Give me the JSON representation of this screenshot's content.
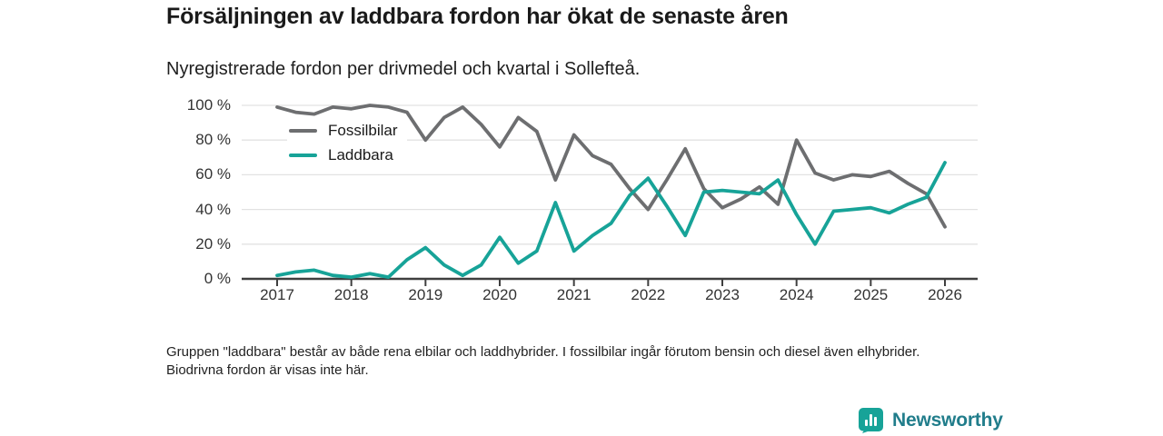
{
  "header": {
    "title": "Försäljningen av laddbara fordon har ökat de senaste åren",
    "subtitle": "Nyregistrerade fordon per drivmedel och kvartal i Sollefteå."
  },
  "chart_data": {
    "type": "line",
    "x_unit": "quarter",
    "x": [
      "2017 Q1",
      "2017 Q2",
      "2017 Q3",
      "2017 Q4",
      "2018 Q1",
      "2018 Q2",
      "2018 Q3",
      "2018 Q4",
      "2019 Q1",
      "2019 Q2",
      "2019 Q3",
      "2019 Q4",
      "2020 Q1",
      "2020 Q2",
      "2020 Q3",
      "2020 Q4",
      "2021 Q1",
      "2021 Q2",
      "2021 Q3",
      "2021 Q4",
      "2022 Q1",
      "2022 Q2",
      "2022 Q3",
      "2022 Q4",
      "2023 Q1",
      "2023 Q2",
      "2023 Q3",
      "2023 Q4",
      "2024 Q1",
      "2024 Q2",
      "2024 Q3",
      "2024 Q4",
      "2025 Q1",
      "2025 Q2",
      "2025 Q3",
      "2025 Q4",
      "2026 Q1"
    ],
    "series": [
      {
        "name": "Fossilbilar",
        "color": "#6d6e70",
        "values": [
          99,
          96,
          95,
          99,
          98,
          100,
          99,
          96,
          80,
          93,
          99,
          89,
          76,
          93,
          85,
          57,
          83,
          71,
          66,
          52,
          40,
          57,
          75,
          52,
          41,
          46,
          53,
          43,
          80,
          61,
          57,
          60,
          59,
          62,
          55,
          49,
          30
        ]
      },
      {
        "name": "Laddbara",
        "color": "#17a398",
        "values": [
          2,
          4,
          5,
          2,
          1,
          3,
          1,
          11,
          18,
          8,
          2,
          8,
          24,
          9,
          16,
          44,
          16,
          25,
          32,
          48,
          58,
          42,
          25,
          50,
          51,
          50,
          49,
          57,
          37,
          20,
          39,
          40,
          41,
          38,
          43,
          47,
          67
        ]
      }
    ],
    "y_tick_values": [
      0,
      20,
      40,
      60,
      80,
      100
    ],
    "y_tick_labels": [
      "0 %",
      "20 %",
      "40 %",
      "60 %",
      "80 %",
      "100 %"
    ],
    "x_tick_labels": [
      "2017",
      "2018",
      "2019",
      "2020",
      "2021",
      "2022",
      "2023",
      "2024",
      "2025",
      "2026"
    ],
    "ylim": [
      0,
      100
    ],
    "grid": "horizontal",
    "legend_position": "inside-top-left"
  },
  "footnote": {
    "text": "Gruppen \"laddbara\" består av både rena elbilar och laddhybrider. I fossilbilar ingår förutom bensin och diesel även elhybrider. Biodrivna fordon är visas inte här."
  },
  "branding": {
    "name": "Newsworthy",
    "logo_color": "#17a398",
    "wordmark_color": "#217d8b"
  }
}
